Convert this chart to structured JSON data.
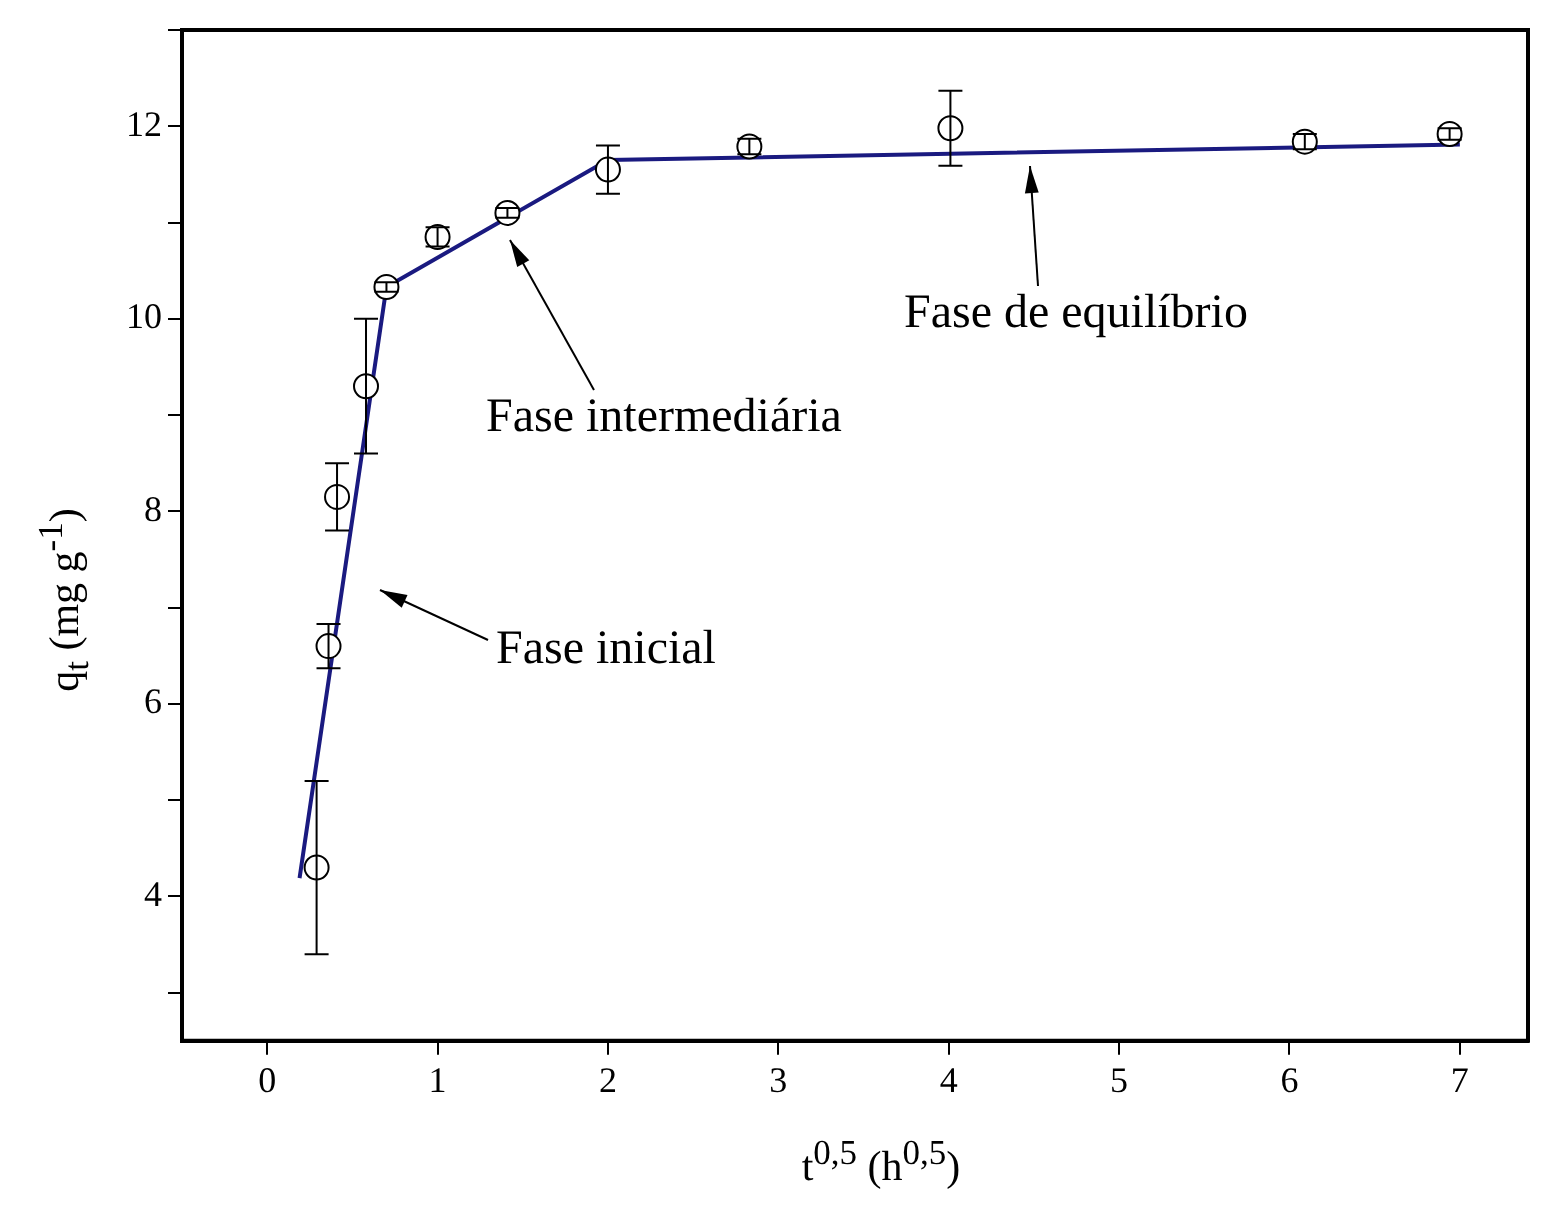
{
  "chart_data": {
    "type": "scatter",
    "xlabel": "t$^{0,5}$ (h$^{0,5}$)",
    "ylabel": "q$_{t}$ (mg g$^{-1}$)",
    "xlim": [
      -0.5,
      7.4
    ],
    "xticks": [
      0,
      1,
      2,
      3,
      4,
      5,
      6,
      7
    ],
    "ylim": [
      2.5,
      13
    ],
    "yticks": [
      {
        "value": 3,
        "label": null
      },
      4,
      {
        "value": 5,
        "label": null
      },
      6,
      {
        "value": 7,
        "label": null
      },
      8,
      {
        "value": 9,
        "label": null
      },
      10,
      {
        "value": 11,
        "label": null
      },
      12,
      {
        "value": 13,
        "label": null
      }
    ],
    "grid": false,
    "legend": false,
    "marker": "circle",
    "series": [
      {
        "color": "#000000",
        "x": [
          0.29,
          0.36,
          0.41,
          0.58,
          0.7,
          1.0,
          1.41,
          2.0,
          2.83,
          4.01,
          6.09,
          6.94
        ],
        "values": [
          4.3,
          6.6,
          8.15,
          9.3,
          10.33,
          10.85,
          11.1,
          11.55,
          11.79,
          11.98,
          11.84,
          11.92
        ],
        "errors": [
          0.9,
          0.23,
          0.35,
          0.7,
          0.05,
          0.1,
          0.05,
          0.25,
          0.08,
          0.39,
          0.08,
          0.06
        ]
      },
      {
        "type": "line",
        "color": "#1a1a80",
        "x": [
          0.19,
          0.7,
          2.0,
          7.0
        ],
        "values": [
          4.19,
          10.33,
          11.65,
          11.81
        ],
        "marker": "none",
        "line_style": "solid"
      }
    ],
    "annotations": [
      "Fase inicial",
      "Fase intermediária",
      "Fase de equilíbrio"
    ]
  }
}
